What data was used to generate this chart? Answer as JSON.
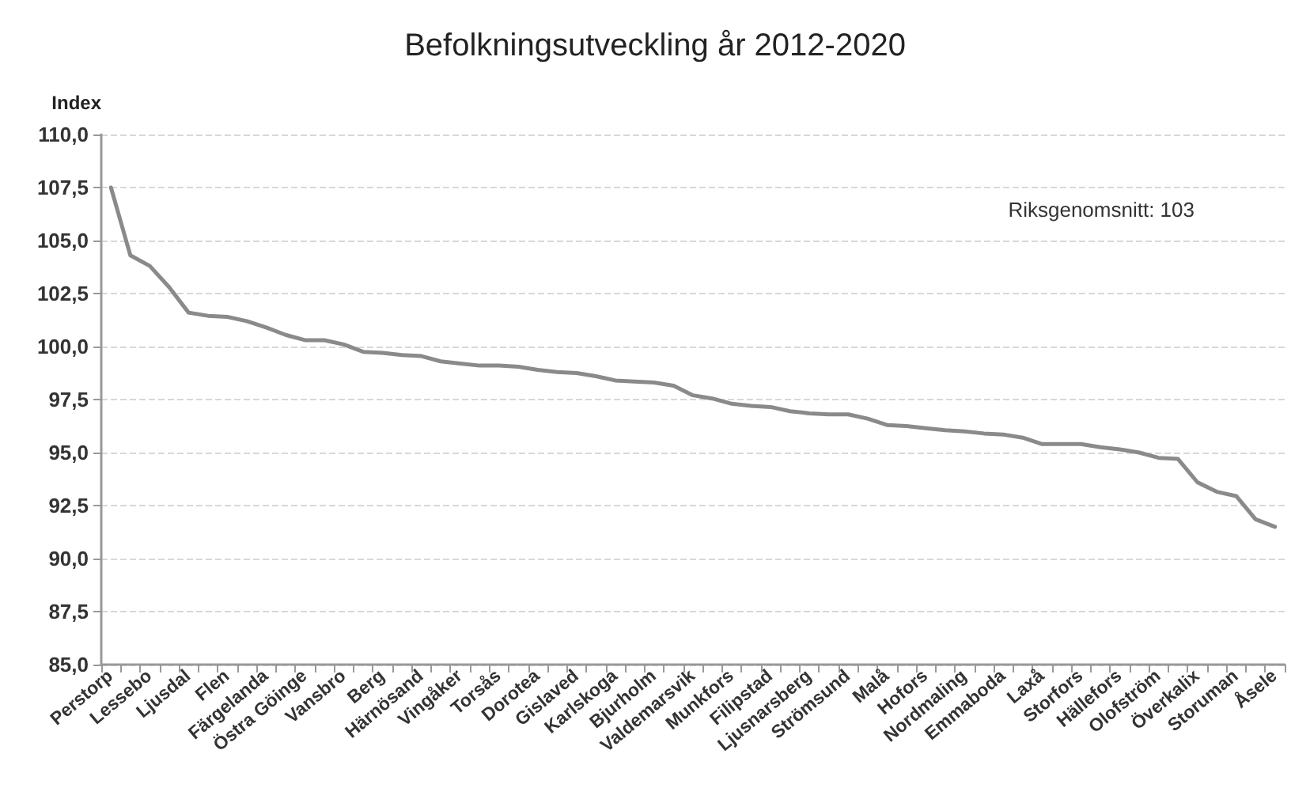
{
  "chart_data": {
    "type": "line",
    "title": "Befolkningsutveckling år 2012-2020",
    "ylabel": "Index",
    "annotations": [
      "Riksgenomsnitt: 103"
    ],
    "categories": [
      "Perstorp",
      null,
      "Lessebo",
      null,
      "Ljusdal",
      null,
      "Flen",
      null,
      "Färgelanda",
      null,
      "Östra Göinge",
      null,
      "Vansbro",
      null,
      "Berg",
      null,
      "Härnösand",
      null,
      "Vingåker",
      null,
      "Torsås",
      null,
      "Dorotea",
      null,
      "Gislaved",
      null,
      "Karlskoga",
      null,
      "Bjurholm",
      null,
      "Valdemarsvik",
      null,
      "Munkfors",
      null,
      "Filipstad",
      null,
      "Ljusnarsberg",
      null,
      "Strömsund",
      null,
      "Malå",
      null,
      "Hofors",
      null,
      "Nordmaling",
      null,
      "Emmaboda",
      null,
      "Laxå",
      null,
      "Storfors",
      null,
      "Hällefors",
      null,
      "Olofström",
      null,
      "Överkalix",
      null,
      "Storuman",
      null,
      "Åsele"
    ],
    "series": [
      {
        "color": "#8a8a8a",
        "values": [
          107.5,
          104.3,
          103.8,
          102.8,
          101.6,
          101.45,
          101.4,
          101.2,
          100.9,
          100.55,
          100.3,
          100.3,
          100.1,
          99.75,
          99.7,
          99.6,
          99.55,
          99.3,
          99.2,
          99.1,
          99.1,
          99.05,
          98.9,
          98.8,
          98.75,
          98.6,
          98.4,
          98.35,
          98.3,
          98.15,
          97.7,
          97.55,
          97.3,
          97.2,
          97.15,
          96.95,
          96.85,
          96.8,
          96.8,
          96.6,
          96.3,
          96.25,
          96.15,
          96.05,
          96.0,
          95.9,
          95.85,
          95.7,
          95.4,
          95.4,
          95.4,
          95.25,
          95.15,
          95.0,
          94.75,
          94.7,
          93.6,
          93.15,
          92.95,
          91.85,
          91.5
        ]
      }
    ],
    "ylim": [
      85,
      110
    ],
    "yticks": [
      {
        "value": 85,
        "label": "85,0"
      },
      {
        "value": 87.5,
        "label": "87,5"
      },
      {
        "value": 90,
        "label": "90,0"
      },
      {
        "value": 92.5,
        "label": "92,5"
      },
      {
        "value": 95,
        "label": "95,0"
      },
      {
        "value": 97.5,
        "label": "97,5"
      },
      {
        "value": 100,
        "label": "100,0"
      },
      {
        "value": 102.5,
        "label": "102,5"
      },
      {
        "value": 105,
        "label": "105,0"
      },
      {
        "value": 107.5,
        "label": "107,5"
      },
      {
        "value": 110,
        "label": "110,0"
      }
    ],
    "grid": "y",
    "marker": "none",
    "line_style": "solid"
  }
}
